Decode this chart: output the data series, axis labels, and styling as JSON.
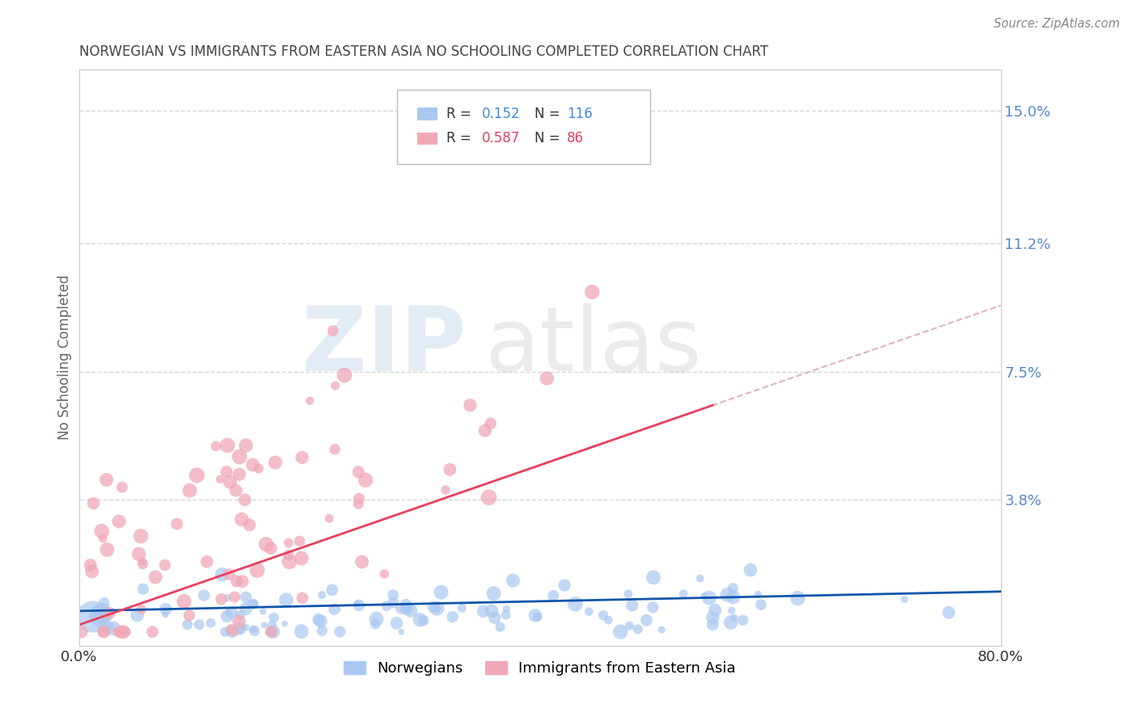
{
  "title": "NORWEGIAN VS IMMIGRANTS FROM EASTERN ASIA NO SCHOOLING COMPLETED CORRELATION CHART",
  "source_text": "Source: ZipAtlas.com",
  "ylabel": "No Schooling Completed",
  "xlim": [
    0.0,
    0.8
  ],
  "ylim": [
    -0.004,
    0.162
  ],
  "xtick_labels": [
    "0.0%",
    "80.0%"
  ],
  "ytick_labels_right": [
    "3.8%",
    "7.5%",
    "11.2%",
    "15.0%"
  ],
  "ytick_vals_right": [
    0.038,
    0.075,
    0.112,
    0.15
  ],
  "grid_color": "#cccccc",
  "background_color": "#ffffff",
  "norwegian_color": "#aac8f0",
  "immigrant_color": "#f0a8b8",
  "norwegian_line_color": "#1155aa",
  "immigrant_line_color": "#e84060",
  "immigrant_dash_color": "#d8a0b8",
  "R_norwegian": 0.152,
  "N_norwegian": 116,
  "R_immigrant": 0.587,
  "N_immigrant": 86,
  "legend_label_norwegian": "Norwegians",
  "legend_label_immigrant": "Immigrants from Eastern Asia",
  "watermark": "ZIPatlas",
  "watermark_zip_color": "#c8d8ea",
  "watermark_atlas_color": "#c8c8c8",
  "title_color": "#444444",
  "right_axis_color": "#5588cc",
  "legend_R_color": "#222222",
  "legend_N_nor_color": "#4488dd",
  "legend_N_imm_color": "#e84060"
}
